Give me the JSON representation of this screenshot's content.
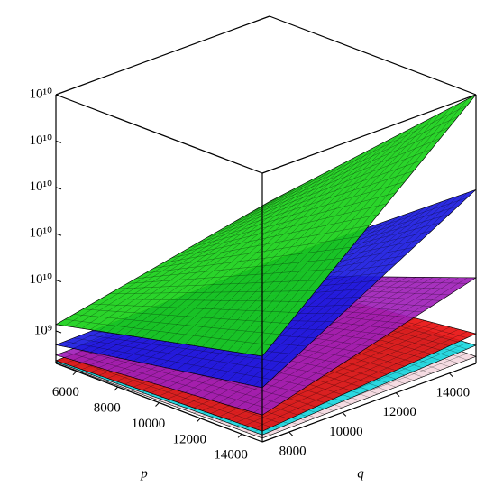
{
  "chart_data": {
    "type": "surface3d",
    "xlabel": "p",
    "ylabel": "q",
    "xlim": [
      5000,
      15000
    ],
    "xticks": [
      6000,
      8000,
      10000,
      12000,
      14000
    ],
    "ylim": [
      7000,
      15000
    ],
    "yticks": [
      8000,
      10000,
      12000,
      14000
    ],
    "zlim": [
      2000000000,
      60000000000
    ],
    "zticks": [
      {
        "value": 9000000000,
        "label": "10⁹"
      },
      {
        "value": 20000000000,
        "label": "10¹⁰"
      },
      {
        "value": 30000000000,
        "label": "10¹⁰"
      },
      {
        "value": 40000000000,
        "label": "10¹⁰"
      },
      {
        "value": 50000000000,
        "label": "10¹⁰"
      },
      {
        "value": 60000000000,
        "label": "10¹⁰"
      }
    ],
    "series": [
      {
        "color": "#f4d8e0",
        "values": [
          [
            2100000000,
            2100000000
          ],
          [
            2800000000,
            3500000000
          ]
        ]
      },
      {
        "color": "#19d8e0",
        "values": [
          [
            2300000000,
            2500000000
          ],
          [
            3500000000,
            5900000000
          ]
        ]
      },
      {
        "color": "#e81010",
        "values": [
          [
            2600000000,
            3000000000
          ],
          [
            4300000000,
            8400000000
          ]
        ]
      },
      {
        "color": "#a020b8",
        "values": [
          [
            3800000000,
            4000000000
          ],
          [
            7800000000,
            20500000000
          ]
        ]
      },
      {
        "color": "#1a1ae0",
        "values": [
          [
            6000000000,
            7000000000
          ],
          [
            13700000000,
            39500000000
          ]
        ]
      },
      {
        "color": "#18d018",
        "values": [
          [
            10400000000,
            20000000000
          ],
          [
            20500000000,
            60000000000
          ]
        ]
      }
    ]
  }
}
